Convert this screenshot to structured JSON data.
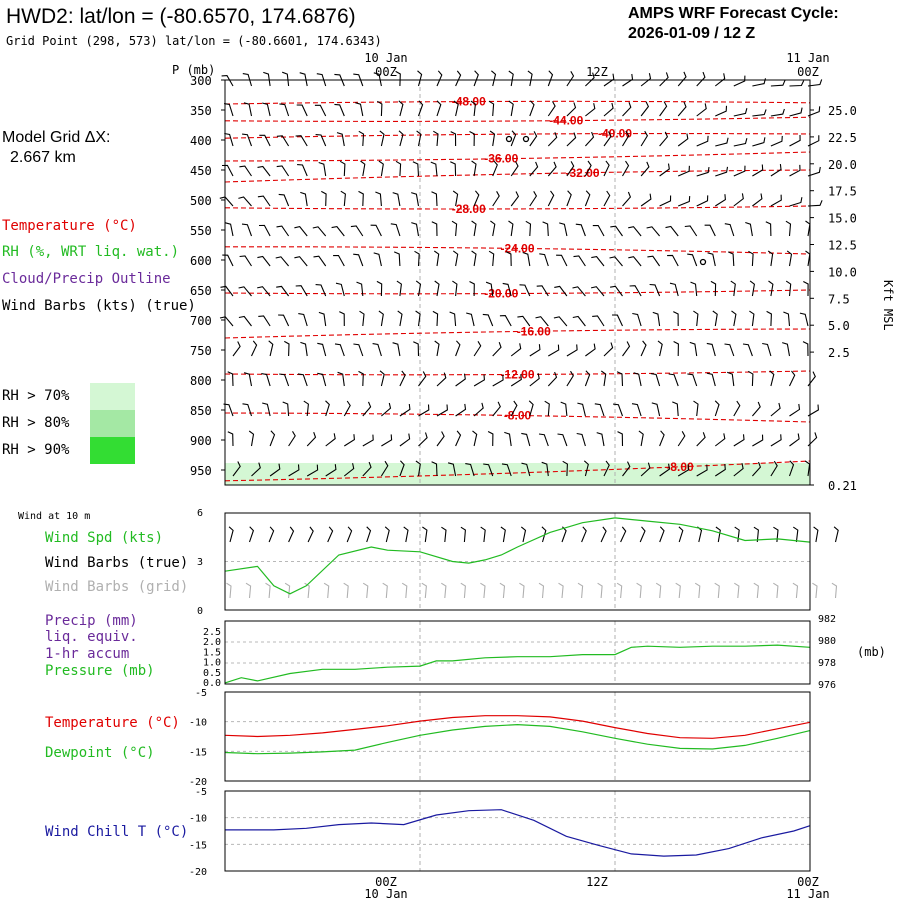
{
  "header": {
    "title": "HWD2:  lat/lon = (-80.6570, 174.6876)",
    "subtitle": "Grid Point (298, 573) lat/lon = (-80.6601, 174.6343)",
    "cycle_line1": "AMPS WRF Forecast Cycle:",
    "cycle_line2": "2026-01-09 / 12  Z"
  },
  "colors": {
    "temperature": "#e00000",
    "rh": "#22bb22",
    "cloud": "#6a2a9a",
    "wind": "#000000",
    "grid_barbs": "#b0b0b0",
    "wind_speed": "#22bb22",
    "pressure": "#22bb22",
    "dewpoint": "#22bb22",
    "wind_chill": "#1a1aa0",
    "rh70": "#d4f7d4",
    "rh80": "#a4e8a4",
    "rh90": "#33dd33"
  },
  "legend": {
    "model_grid_label": "Model Grid ΔX:",
    "model_grid_value": "2.667 km",
    "temperature": "Temperature (°C)",
    "rh": "RH (%, WRT liq. wat.)",
    "cloud": "Cloud/Precip Outline",
    "wind_barbs": "Wind Barbs (kts) (true)",
    "rh70": "RH > 70%",
    "rh80": "RH > 80%",
    "rh90": "RH > 90%"
  },
  "time_axis": {
    "top_dates": [
      "10 Jan",
      "11 Jan"
    ],
    "top_hours": [
      "00Z",
      "12Z",
      "00Z"
    ],
    "bottom_hours": [
      "00Z",
      "12Z",
      "00Z"
    ],
    "bottom_dates": [
      "10 Jan",
      "11 Jan"
    ],
    "hours_range": [
      -12,
      24
    ]
  },
  "sounding": {
    "p_label": "P (mb)",
    "pressure_ticks": [
      "300",
      "350",
      "400",
      "450",
      "500",
      "550",
      "600",
      "650",
      "700",
      "750",
      "800",
      "850",
      "900",
      "950"
    ],
    "height_label": "Kft MSL",
    "height_ticks": [
      "25.0",
      "22.5",
      "20.0",
      "17.5",
      "15.0",
      "12.5",
      "10.0",
      "7.5",
      "5.0",
      "2.5",
      "0.21"
    ],
    "isotherm_labels": [
      "-48.00",
      "-44.00",
      "-40.00",
      "-36.00",
      "-32.00",
      "-28.00",
      "-24.00",
      "-20.00",
      "-16.00",
      "-12.00",
      "-8.00",
      "-8.00"
    ]
  },
  "wind10m": {
    "title": "Wind at 10 m",
    "label_speed": "Wind Spd (kts)",
    "label_true": "Wind Barbs (true)",
    "label_grid": "Wind Barbs (grid)",
    "y_ticks": [
      "6",
      "3",
      "0"
    ],
    "ylim": [
      0,
      6
    ]
  },
  "precip": {
    "label1": "Precip (mm)",
    "label2": "liq. equiv.",
    "label3": "1-hr accum",
    "label4": "Pressure (mb)",
    "left_ticks": [
      "2.5",
      "2.0",
      "1.5",
      "1.0",
      "0.5",
      "0.0"
    ],
    "right_ticks": [
      "982",
      "980",
      "978",
      "976"
    ],
    "right_unit": "(mb)",
    "ylim_right": [
      976,
      982
    ]
  },
  "temps": {
    "label_t": "Temperature (°C)",
    "label_td": "Dewpoint (°C)",
    "y_ticks": [
      "-5",
      "-10",
      "-15",
      "-20"
    ],
    "ylim": [
      -20,
      -5
    ]
  },
  "windchill": {
    "label": "Wind Chill T (°C)",
    "y_ticks": [
      "-5",
      "-10",
      "-15",
      "-20"
    ],
    "ylim": [
      -20,
      -5
    ]
  },
  "chart_data": [
    {
      "type": "line",
      "title": "Wind at 10 m",
      "series": [
        {
          "name": "Wind Spd (kts)",
          "x": [
            -12,
            -10,
            -9,
            -8,
            -7,
            -5,
            -3,
            -2,
            0,
            2,
            3,
            4,
            5,
            6,
            8,
            10,
            12,
            14,
            16,
            18,
            20,
            22,
            24
          ],
          "values": [
            2.4,
            2.7,
            1.5,
            1.0,
            1.5,
            3.4,
            3.9,
            3.7,
            3.6,
            3.0,
            2.9,
            3.1,
            3.4,
            3.9,
            4.8,
            5.4,
            5.7,
            5.5,
            5.3,
            4.9,
            4.3,
            4.4,
            4.2
          ]
        }
      ],
      "ylim": [
        0,
        6
      ]
    },
    {
      "type": "line",
      "title": "Pressure (mb)",
      "series": [
        {
          "name": "Pressure (mb)",
          "x": [
            -12,
            -11,
            -10,
            -8,
            -6,
            -4,
            -2,
            0,
            1,
            2,
            4,
            6,
            8,
            10,
            12,
            13,
            14,
            16,
            18,
            20,
            22,
            24
          ],
          "values": [
            976.1,
            976.6,
            976.3,
            977.0,
            977.4,
            977.4,
            977.6,
            977.7,
            978.2,
            978.2,
            978.5,
            978.6,
            978.6,
            978.8,
            978.8,
            979.5,
            979.6,
            979.5,
            979.6,
            979.6,
            979.7,
            979.5
          ]
        }
      ],
      "ylim": [
        976,
        982
      ]
    },
    {
      "type": "line",
      "title": "Temperature / Dewpoint",
      "series": [
        {
          "name": "Temperature (°C)",
          "x": [
            -12,
            -10,
            -8,
            -6,
            -4,
            -2,
            0,
            2,
            4,
            6,
            8,
            10,
            12,
            14,
            16,
            18,
            20,
            22,
            24
          ],
          "values": [
            -12.3,
            -12.5,
            -12.3,
            -11.9,
            -11.3,
            -10.7,
            -9.9,
            -9.3,
            -9.0,
            -9.0,
            -9.2,
            -9.9,
            -11.0,
            -12.0,
            -12.7,
            -12.8,
            -12.3,
            -11.2,
            -10.1
          ]
        },
        {
          "name": "Dewpoint (°C)",
          "x": [
            -12,
            -10,
            -8,
            -6,
            -4,
            -2,
            0,
            2,
            4,
            6,
            8,
            10,
            12,
            14,
            16,
            18,
            20,
            22,
            24
          ],
          "values": [
            -15.2,
            -15.4,
            -15.3,
            -15.1,
            -14.8,
            -13.5,
            -12.3,
            -11.4,
            -10.8,
            -10.5,
            -10.8,
            -11.7,
            -12.8,
            -13.8,
            -14.5,
            -14.6,
            -14.0,
            -12.8,
            -11.5
          ]
        }
      ],
      "ylim": [
        -20,
        -5
      ]
    },
    {
      "type": "line",
      "title": "Wind Chill T (°C)",
      "series": [
        {
          "name": "Wind Chill T (°C)",
          "x": [
            -12,
            -9,
            -7,
            -5,
            -3,
            -1,
            1,
            3,
            5,
            7,
            9,
            11,
            13,
            15,
            17,
            19,
            21,
            23,
            24
          ],
          "values": [
            -12.3,
            -12.3,
            -12.0,
            -11.3,
            -11.0,
            -11.3,
            -9.5,
            -8.7,
            -8.5,
            -10.5,
            -13.5,
            -15.2,
            -16.8,
            -17.2,
            -17.0,
            -15.8,
            -13.8,
            -12.5,
            -11.5
          ]
        }
      ],
      "ylim": [
        -20,
        -5
      ]
    },
    {
      "type": "line",
      "title": "Temperature isotherms",
      "series": [
        {
          "name": "-48.00",
          "x": [
            -12,
            24
          ],
          "values": [
            340,
            338
          ]
        },
        {
          "name": "-44.00",
          "x": [
            -12,
            24
          ],
          "values": [
            368,
            362
          ]
        },
        {
          "name": "-40.00",
          "x": [
            -12,
            24
          ],
          "values": [
            397,
            390
          ]
        },
        {
          "name": "-36.00",
          "x": [
            -12,
            24
          ],
          "values": [
            435,
            420
          ]
        },
        {
          "name": "-32.00",
          "x": [
            -12,
            24
          ],
          "values": [
            470,
            450
          ]
        },
        {
          "name": "-28.00",
          "x": [
            -12,
            24
          ],
          "values": [
            513,
            510
          ]
        },
        {
          "name": "-24.00",
          "x": [
            -12,
            24
          ],
          "values": [
            578,
            590
          ]
        },
        {
          "name": "-20.00",
          "x": [
            -12,
            24
          ],
          "values": [
            655,
            650
          ]
        },
        {
          "name": "-16.00",
          "x": [
            -12,
            24
          ],
          "values": [
            730,
            715
          ]
        },
        {
          "name": "-12.00",
          "x": [
            -12,
            24
          ],
          "values": [
            790,
            785
          ]
        },
        {
          "name": "-8.00",
          "x": [
            -12,
            24
          ],
          "values": [
            855,
            870
          ]
        },
        {
          "name": "-8.00",
          "x": [
            -12,
            24
          ],
          "values": [
            968,
            935
          ]
        }
      ],
      "ylim": [
        975,
        300
      ]
    }
  ]
}
